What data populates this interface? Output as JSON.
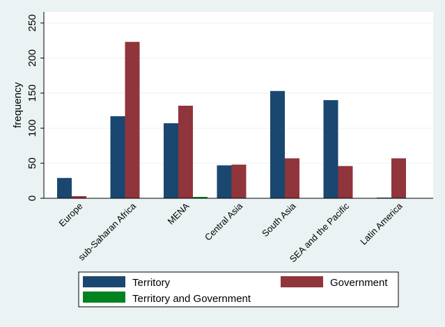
{
  "chart_data": {
    "type": "bar",
    "title": "",
    "xlabel": "",
    "ylabel": "frequency",
    "ylim": [
      0,
      250
    ],
    "yticks": [
      0,
      50,
      100,
      150,
      200,
      250
    ],
    "categories": [
      "Europe",
      "sub-Saharan Africa",
      "MENA",
      "Central Asia",
      "South Asia",
      "SEA and the Pacific",
      "Latin America"
    ],
    "series": [
      {
        "name": "Territory",
        "color": "#1a476f",
        "values": [
          29,
          117,
          107,
          47,
          153,
          140,
          1
        ]
      },
      {
        "name": "Government",
        "color": "#90353b",
        "values": [
          3,
          223,
          132,
          48,
          57,
          46,
          57
        ]
      },
      {
        "name": "Territory and Government",
        "color": "#00821f",
        "values": [
          0,
          0,
          2,
          0,
          0,
          0,
          0
        ]
      }
    ],
    "grid": true,
    "legend_position": "bottom"
  },
  "colors": {
    "background": "#eaf2f3",
    "plot_background": "#ffffff",
    "gridline": "#eaf2f3"
  }
}
